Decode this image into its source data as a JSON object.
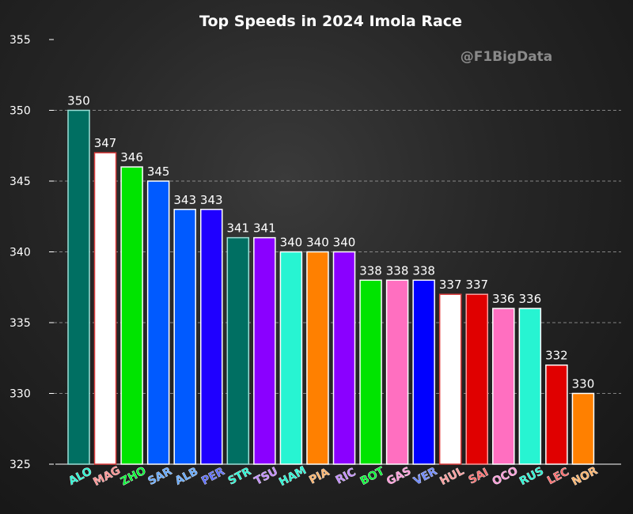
{
  "chart_data": {
    "type": "bar",
    "title": "Top Speeds in 2024 Imola Race",
    "watermark": "@F1BigData",
    "xlabel": "",
    "ylabel": "",
    "ylim": [
      325,
      355
    ],
    "yticks": [
      325,
      330,
      335,
      340,
      345,
      350,
      355
    ],
    "grid": "horizontal dashed",
    "categories": [
      "ALO",
      "MAG",
      "ZHO",
      "SAR",
      "ALB",
      "PER",
      "STR",
      "TSU",
      "HAM",
      "PIA",
      "RIC",
      "BOT",
      "GAS",
      "VER",
      "HUL",
      "SAI",
      "OCO",
      "RUS",
      "LEC",
      "NOR"
    ],
    "values": [
      350,
      347,
      346,
      345,
      343,
      343,
      341,
      341,
      340,
      340,
      340,
      338,
      338,
      338,
      337,
      337,
      336,
      336,
      332,
      330
    ],
    "value_labels": [
      "350",
      "347",
      "346",
      "345",
      "343",
      "343",
      "341",
      "341",
      "340",
      "340",
      "340",
      "338",
      "338",
      "338",
      "337",
      "337",
      "336",
      "336",
      "332",
      "330"
    ],
    "bar_colors": [
      "#006f62",
      "#ffffff",
      "#00e400",
      "#005aff",
      "#005aff",
      "#1f00ff",
      "#006f62",
      "#8a00ff",
      "#27f4d2",
      "#ff8000",
      "#8a00ff",
      "#00e400",
      "#ff6fc0",
      "#0000ff",
      "#ffffff",
      "#e00000",
      "#ff6fc0",
      "#27f4d2",
      "#e00000",
      "#ff8000"
    ],
    "label_colors": [
      "#27f4d2",
      "#ff8f8f",
      "#00ff33",
      "#62a8ff",
      "#62a8ff",
      "#5a6bff",
      "#27f4d2",
      "#c08aff",
      "#27f4d2",
      "#ffb36b",
      "#c08aff",
      "#00ff33",
      "#ff9bd8",
      "#6a86ff",
      "#ff9b9b",
      "#ff6b6b",
      "#ff9bd8",
      "#27f4d2",
      "#ff6b6b",
      "#ffb36b"
    ],
    "edge_colors": [
      "#9de0d8",
      "#e04040",
      "#ffffff",
      "#ffffff",
      "#ffffff",
      "#ffffff",
      "#9de0d8",
      "#ffffff",
      "#ffffff",
      "#ffffff",
      "#ffffff",
      "#ffffff",
      "#ffffff",
      "#ffffff",
      "#e04040",
      "#ff9b9b",
      "#ffffff",
      "#ffffff",
      "#ffffff",
      "#ffffff"
    ]
  }
}
